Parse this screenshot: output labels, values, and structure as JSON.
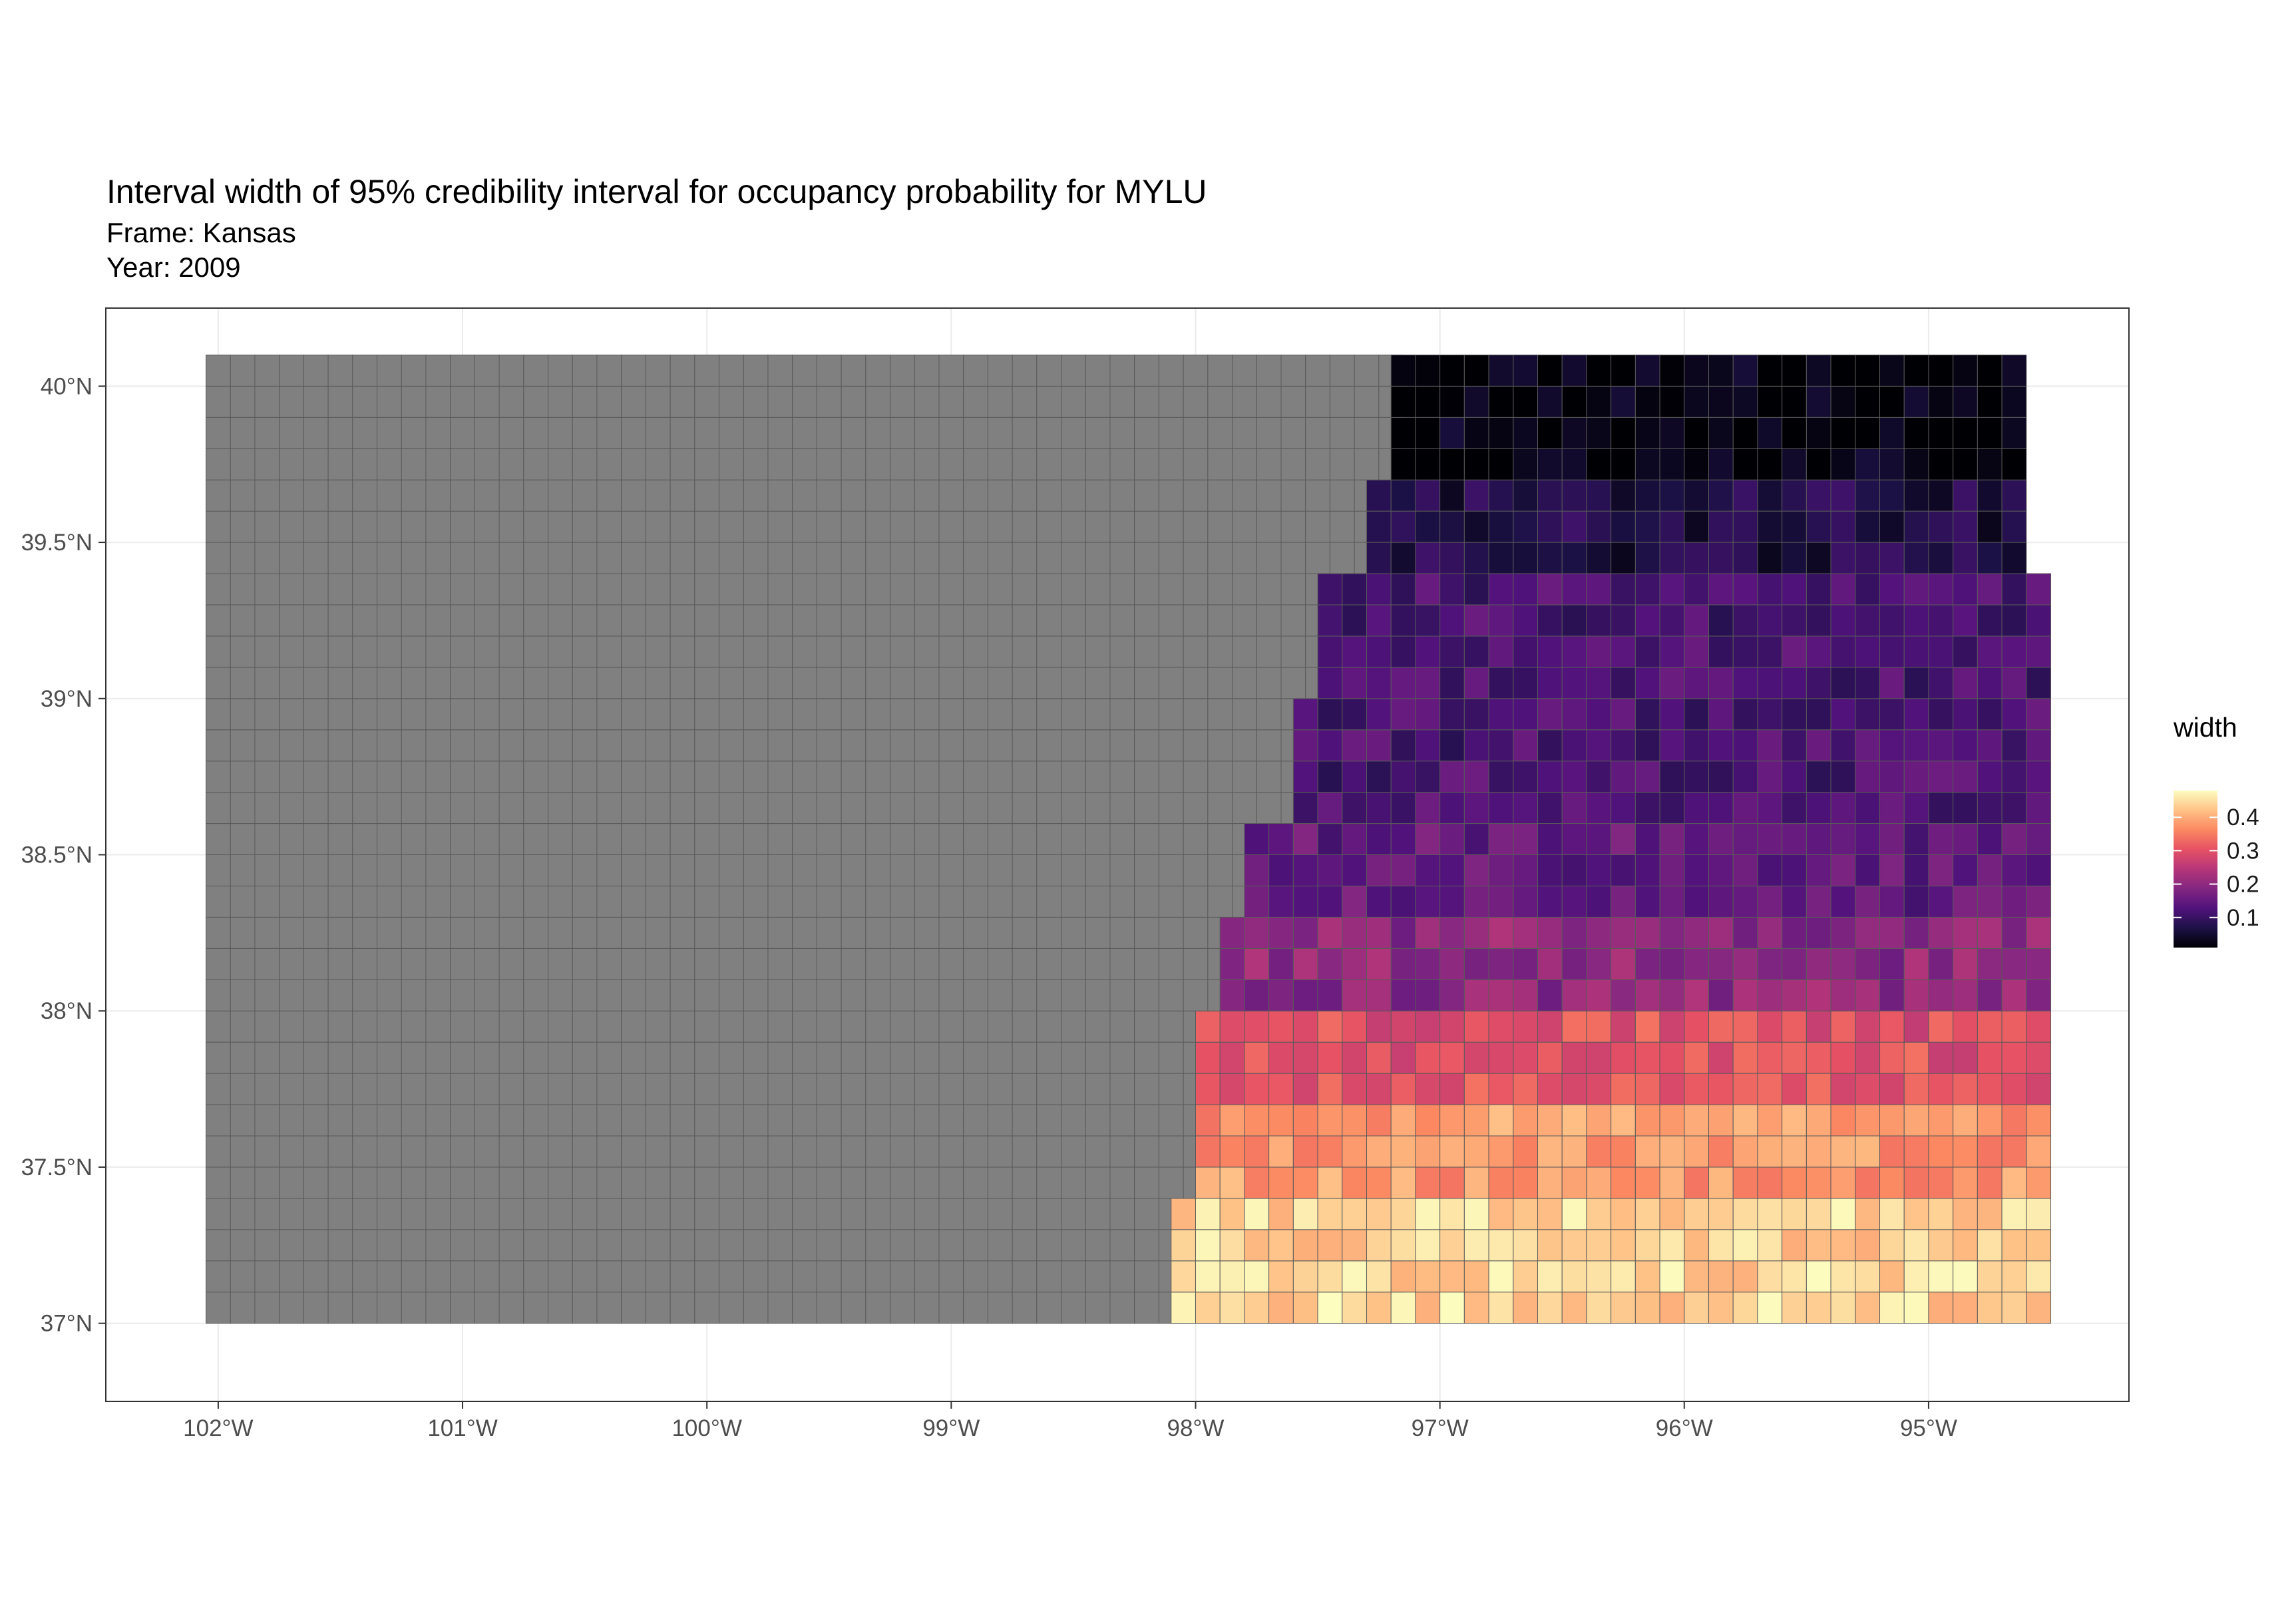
{
  "title": "Interval width of 95% credibility interval for occupancy probability for MYLU",
  "subtitle": "Frame: Kansas\nYear: 2009",
  "x_axis": {
    "ticks": [
      -102,
      -101,
      -100,
      -99,
      -98,
      -97,
      -96,
      -95
    ],
    "tick_labels": [
      "102°W",
      "101°W",
      "100°W",
      "99°W",
      "98°W",
      "97°W",
      "96°W",
      "95°W"
    ],
    "limits": [
      -102.46,
      -94.18
    ]
  },
  "y_axis": {
    "ticks": [
      37,
      37.5,
      38,
      38.5,
      39,
      39.5,
      40
    ],
    "tick_labels": [
      "37°N",
      "37.5°N",
      "38°N",
      "38.5°N",
      "39°N",
      "39.5°N",
      "40°N"
    ],
    "limits": [
      36.75,
      40.25
    ]
  },
  "legend": {
    "title": "width",
    "breaks": [
      0.1,
      0.2,
      0.3,
      0.4
    ],
    "labels": [
      "0.1",
      "0.2",
      "0.3",
      "0.4"
    ],
    "range": [
      0.01,
      0.48
    ],
    "palette": "magma"
  },
  "colors": {
    "no_data": "#808080",
    "grid_line": "#ebebeb",
    "cell_border": "#5a5a5a",
    "panel_border": "#333333",
    "magma_stops": [
      "#000004",
      "#1d1147",
      "#51127c",
      "#822681",
      "#b63679",
      "#e65164",
      "#fb8861",
      "#fec287",
      "#fcfdbf"
    ]
  },
  "chart_data": {
    "type": "heatmap",
    "subject": "Interval width of 95% credibility interval for occupancy probability for MYLU, Kansas, 2009",
    "grid": "approx. 0.1 degree survey cells; grey cells have no estimate",
    "no_data_extent_lon": [
      -102.05,
      -97.2
    ],
    "lat_bands": [
      {
        "lat_range": [
          39.7,
          40.05
        ],
        "lon_range": [
          -97.2,
          -94.6
        ],
        "width_approx": 0.02
      },
      {
        "lat_range": [
          39.35,
          39.7
        ],
        "lon_range": [
          -97.3,
          -94.6
        ],
        "width_approx": 0.07
      },
      {
        "lat_range": [
          39.0,
          39.35
        ],
        "lon_range": [
          -97.5,
          -94.5
        ],
        "width_approx": 0.12
      },
      {
        "lat_range": [
          38.6,
          39.0
        ],
        "lon_range": [
          -97.6,
          -94.5
        ],
        "width_approx": 0.12
      },
      {
        "lat_range": [
          38.3,
          38.6
        ],
        "lon_range": [
          -97.8,
          -94.5
        ],
        "width_approx": 0.15
      },
      {
        "lat_range": [
          38.0,
          38.3
        ],
        "lon_range": [
          -97.9,
          -94.5
        ],
        "width_approx": 0.2
      },
      {
        "lat_range": [
          37.7,
          38.0
        ],
        "lon_range": [
          -98.0,
          -94.5
        ],
        "width_approx": 0.3
      },
      {
        "lat_range": [
          37.35,
          37.7
        ],
        "lon_range": [
          -98.0,
          -94.5
        ],
        "width_approx": 0.38
      },
      {
        "lat_range": [
          37.0,
          37.35
        ],
        "lon_range": [
          -98.1,
          -94.5
        ],
        "width_approx": 0.44
      }
    ]
  }
}
